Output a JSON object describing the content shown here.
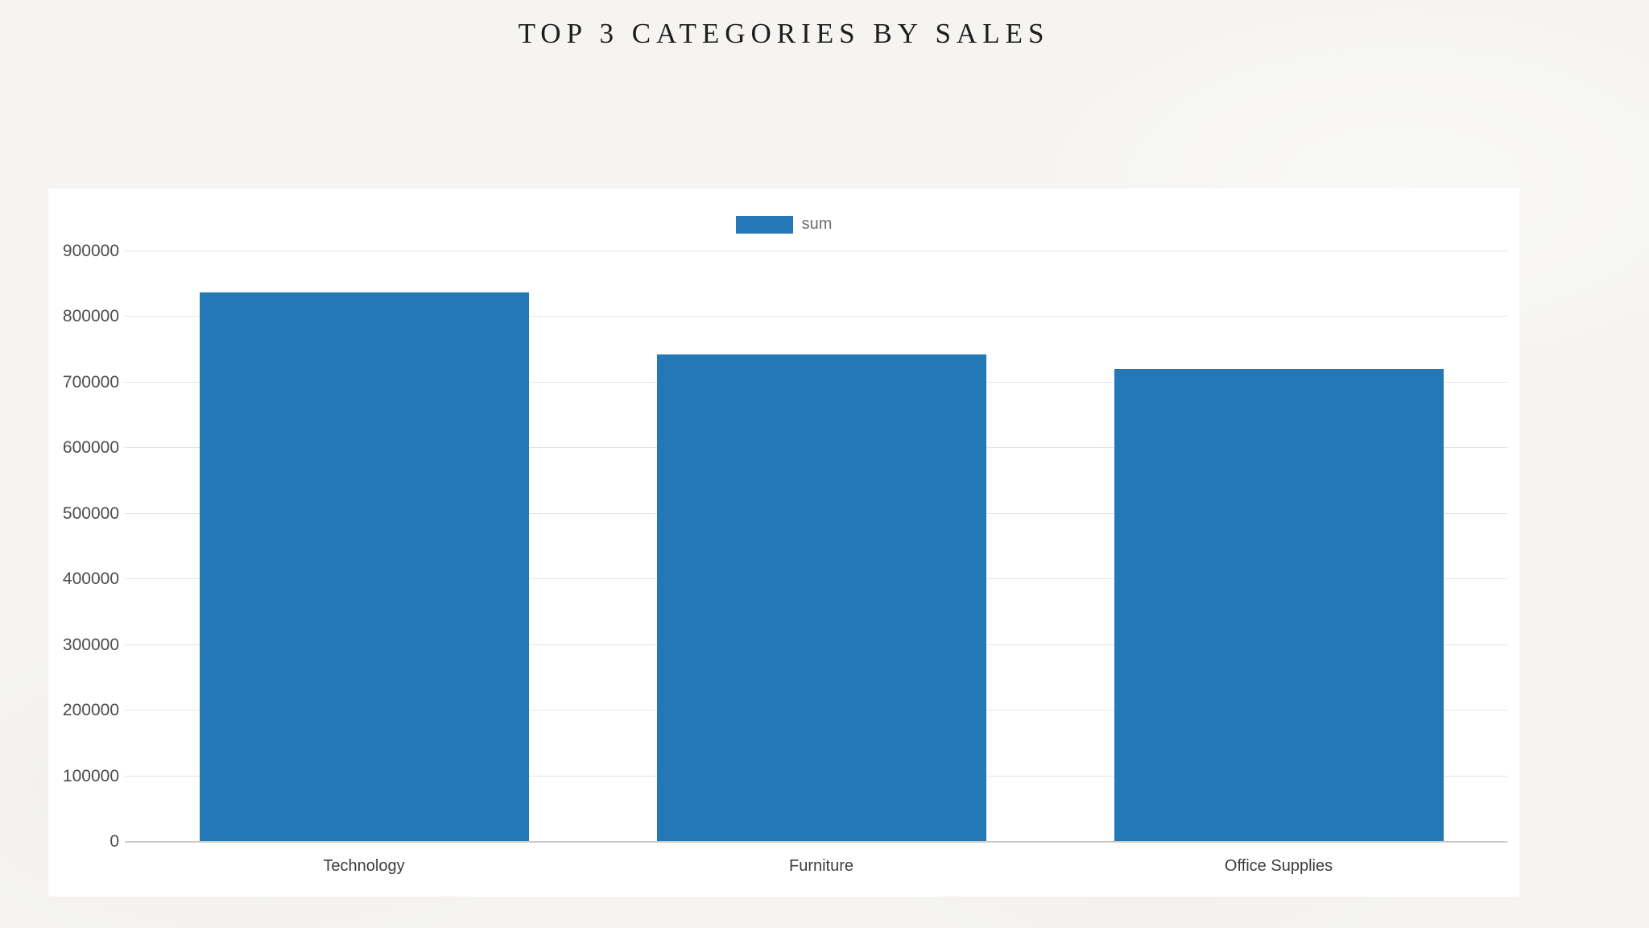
{
  "title": "TOP 3 CATEGORIES BY SALES",
  "legend": {
    "label": "sum",
    "position": "top-center"
  },
  "colors": {
    "bar": "#2478b5",
    "background": "#f5f4f2",
    "panel": "#ffffff",
    "gridline": "#e4e4e4",
    "axis_line": "#c9c9c9",
    "ytick_label": "#4c4c4c",
    "xtick_label": "#3d3d3d",
    "legend_label": "#6e6e6e",
    "title": "#1d1d1d"
  },
  "chart_data": {
    "type": "bar",
    "title": "TOP 3 CATEGORIES BY SALES",
    "categories": [
      "Technology",
      "Furniture",
      "Office Supplies"
    ],
    "series": [
      {
        "name": "sum",
        "values": [
          836000,
          742000,
          719000
        ]
      }
    ],
    "xlabel": "",
    "ylabel": "",
    "ylim": [
      0,
      900000
    ],
    "ytick_step": 100000,
    "yticks": [
      0,
      100000,
      200000,
      300000,
      400000,
      500000,
      600000,
      700000,
      800000,
      900000
    ],
    "grid": true,
    "legend_position": "top-center"
  }
}
